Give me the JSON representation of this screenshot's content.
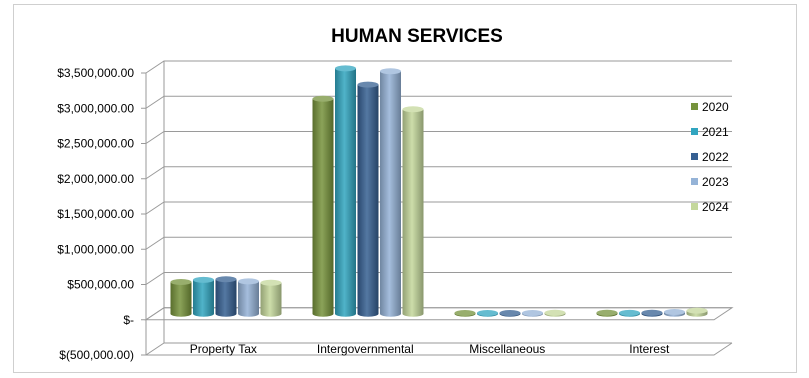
{
  "chart_data": {
    "type": "bar",
    "title": "HUMAN SERVICES",
    "categories": [
      "Property Tax",
      "Intergovernmental",
      "Miscellaneous",
      "Interest"
    ],
    "series": [
      {
        "name": "2020",
        "color": "#76933C",
        "values": [
          450000,
          3050000,
          10000,
          15000
        ]
      },
      {
        "name": "2021",
        "color": "#31A5C0",
        "values": [
          480000,
          3480000,
          10000,
          12000
        ]
      },
      {
        "name": "2022",
        "color": "#366092",
        "values": [
          490000,
          3250000,
          10000,
          15000
        ]
      },
      {
        "name": "2023",
        "color": "#95B3D7",
        "values": [
          460000,
          3440000,
          10000,
          25000
        ]
      },
      {
        "name": "2024",
        "color": "#C4D79B",
        "values": [
          440000,
          2900000,
          15000,
          45000
        ]
      }
    ],
    "y_ticks": [
      {
        "value": 3500000,
        "label": "$3,500,000.00"
      },
      {
        "value": 3000000,
        "label": "$3,000,000.00"
      },
      {
        "value": 2500000,
        "label": "$2,500,000.00"
      },
      {
        "value": 2000000,
        "label": "$2,000,000.00"
      },
      {
        "value": 1500000,
        "label": "$1,500,000.00"
      },
      {
        "value": 1000000,
        "label": "$1,000,000.00"
      },
      {
        "value": 500000,
        "label": "$500,000.00"
      },
      {
        "value": 0,
        "label": "$-"
      },
      {
        "value": -500000,
        "label": "$(500,000.00)"
      }
    ],
    "ylim": [
      -500000,
      3500000
    ],
    "grid": true,
    "legend": "right"
  }
}
